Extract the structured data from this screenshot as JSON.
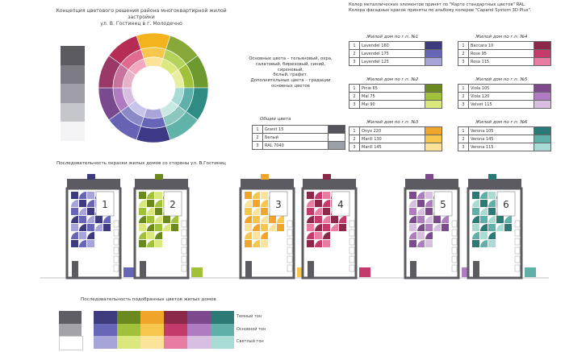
{
  "title": {
    "line1": "Концепция цветового решения района многоквартирной жилой застройки",
    "line2": "ул. В. Гостинец в г. Молодечно"
  },
  "note": {
    "line1": "Колер металлических элементов принят по \"Карте стандартных цветов\" RAL.",
    "line2": "Колера фасадных красок приняты по альбому колеров \"Caparol System 3D Plus\"."
  },
  "legend": {
    "line1": "Основные цвета – тельяновый, охра,",
    "line2": "салатовый, бирюзовый, синий, сиреневый,",
    "line3": "белый, графит.",
    "line4": "Дополнительные цвета – градации",
    "line5": "основных цветов"
  },
  "left_grays": [
    "#5c5b62",
    "#7d7c84",
    "#9f9ea6",
    "#c5c5cc",
    "#f4f4f6"
  ],
  "general": {
    "heading": "Общие цвета",
    "rows": [
      {
        "n": "1",
        "name": "Granit 15",
        "color": "#55545b"
      },
      {
        "n": "2",
        "name": "Белый",
        "color": "#ffffff"
      },
      {
        "n": "3",
        "name": "RAL 7040",
        "color": "#9aa0a6"
      }
    ]
  },
  "palettes": [
    {
      "heading": "Жилой дом по г.п. №1",
      "rows": [
        {
          "n": "1",
          "name": "Lavendel 160",
          "color": "#3d3b7e"
        },
        {
          "n": "2",
          "name": "Lavendel 175",
          "color": "#6766b6"
        },
        {
          "n": "3",
          "name": "Lavendel 125",
          "color": "#a7a4d9"
        }
      ]
    },
    {
      "heading": "Жилой дом по г.п. №4",
      "rows": [
        {
          "n": "1",
          "name": "Baccara 10",
          "color": "#8c2849"
        },
        {
          "n": "2",
          "name": "Rose 95",
          "color": "#c53a6c"
        },
        {
          "n": "3",
          "name": "Rosa 115",
          "color": "#e97ca3"
        }
      ]
    },
    {
      "heading": "Жилой дом по г.п. №2",
      "rows": [
        {
          "n": "1",
          "name": "Pinie 65",
          "color": "#6a8a1f"
        },
        {
          "n": "2",
          "name": "Mai 75",
          "color": "#a2c13a"
        },
        {
          "n": "3",
          "name": "Mai 90",
          "color": "#dbe87d"
        }
      ]
    },
    {
      "heading": "Жилой дом по г.п. №5",
      "rows": [
        {
          "n": "1",
          "name": "Viola 105",
          "color": "#7d4a8e"
        },
        {
          "n": "2",
          "name": "Viola 120",
          "color": "#b07cc1"
        },
        {
          "n": "3",
          "name": "Velvet 115",
          "color": "#d8bfe1"
        }
      ]
    },
    {
      "heading": "Жилой дом по г.п. №3",
      "rows": [
        {
          "n": "1",
          "name": "Onyx 220",
          "color": "#f1a62b"
        },
        {
          "n": "2",
          "name": "Marill 130",
          "color": "#f6c64d"
        },
        {
          "n": "3",
          "name": "Marill 145",
          "color": "#fbe39a"
        }
      ]
    },
    {
      "heading": "Жилой дом по г.п. №6",
      "rows": [
        {
          "n": "1",
          "name": "Verona 105",
          "color": "#2c7a76"
        },
        {
          "n": "2",
          "name": "Verona 145",
          "color": "#5eb0a8"
        },
        {
          "n": "3",
          "name": "Verona 115",
          "color": "#a8dbd3"
        }
      ]
    }
  ],
  "seq_title": "Последовательность окраски жилых домов со стороны ул. В.Гостинец",
  "buildings": [
    {
      "number": "1",
      "dark": "#3d3b7e",
      "mid": "#6766b6",
      "light": "#a7a4d9"
    },
    {
      "number": "2",
      "dark": "#6a8a1f",
      "mid": "#a2c13a",
      "light": "#dbe87d"
    },
    {
      "number": "3",
      "dark": "#f1a62b",
      "mid": "#f6c64d",
      "light": "#fbe39a"
    },
    {
      "number": "4",
      "dark": "#8c2849",
      "mid": "#c53a6c",
      "light": "#e97ca3"
    },
    {
      "number": "5",
      "dark": "#7d4a8e",
      "mid": "#b07cc1",
      "light": "#d8bfe1"
    },
    {
      "number": "6",
      "dark": "#2c7a76",
      "mid": "#5eb0a8",
      "light": "#a8dbd3"
    }
  ],
  "tone_title": "Последовательность подобранных цветов жилых домов",
  "tones": {
    "labels": [
      "Темный тон",
      "Основной тон",
      "Светлый тон"
    ],
    "grays": [
      "#5f5e65",
      "#a3a3a9",
      "#ffffff"
    ],
    "rows": [
      [
        "#3d3b7e",
        "#6a8a1f",
        "#f1a62b",
        "#8c2849",
        "#7d4a8e",
        "#2c7a76"
      ],
      [
        "#6766b6",
        "#a2c13a",
        "#f6c64d",
        "#c53a6c",
        "#b07cc1",
        "#5eb0a8"
      ],
      [
        "#a7a4d9",
        "#dbe87d",
        "#fbe39a",
        "#e97ca3",
        "#d8bfe1",
        "#a8dbd3"
      ]
    ]
  },
  "wheel": {
    "outer": [
      "#f3b31d",
      "#88a93a",
      "#6d9a2e",
      "#2e8c82",
      "#5fb3a8",
      "#3c3a86",
      "#6663b4",
      "#7a4a8f",
      "#9a3868",
      "#b52d55"
    ],
    "mid": [
      "#f6c64d",
      "#b5d35b",
      "#a2c13a",
      "#5eb0a8",
      "#8cc7be",
      "#6766b6",
      "#8b89c8",
      "#b07cc1",
      "#c9739c",
      "#e06b8e"
    ],
    "inner": [
      "#fbe39a",
      "#dbe87d",
      "#e8f0a0",
      "#a8dbd3",
      "#c8e9e3",
      "#a7a4d9",
      "#c6c4ea",
      "#d8bfe1",
      "#e7b2c8",
      "#f2a9c0"
    ]
  }
}
